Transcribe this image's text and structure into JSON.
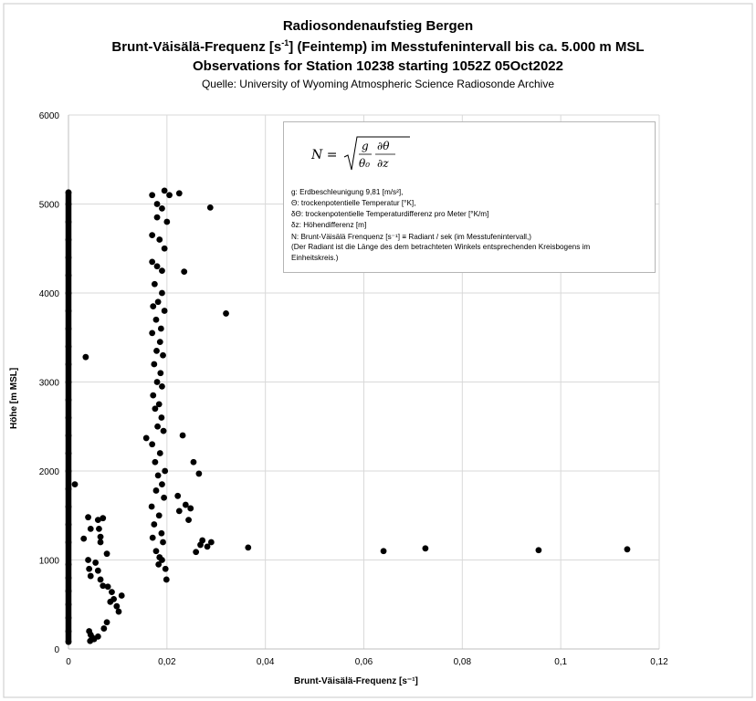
{
  "title": {
    "line1": "Radiosondenaufstieg Bergen",
    "line2": "Brunt-Väisälä-Frequenz [s",
    "line2_sup": "-1",
    "line2_rest": "] (Feintemp) im Messtufenintervall bis ca. 5.000 m MSL",
    "line3": "Observations for Station 10238 starting 1052Z 05Oct2022",
    "source": "Quelle: University of Wyoming Atmospheric Science Radiosonde Archive"
  },
  "formula_box": {
    "formula_lhs": "N =",
    "legend": [
      "g: Erdbeschleunigung 9,81 [m/s²],",
      "Θ: trockenpotentielle Temperatur [°K],",
      "δΘ: trockenpotentielle Temperaturdifferenz pro Meter [°K/m]",
      "δz: Höhendifferenz [m]",
      "N: Brunt-Väisälä Frenquenz [s⁻¹] ≡ Radiant / sek (im Messtufenintervall,)",
      "(Der Radiant ist die Länge des dem betrachteten Winkels entsprechenden Kreisbogens im",
      "Einheitskreis.)"
    ]
  },
  "chart_data": {
    "type": "scatter",
    "xlabel": "Brunt-Väisälä-Frequenz [s⁻¹]",
    "ylabel": "Höhe [m MSL]",
    "xlim": [
      0,
      0.12
    ],
    "ylim": [
      0,
      6000
    ],
    "x_ticks": [
      0,
      0.02,
      0.04,
      0.06,
      0.08,
      0.1,
      0.12
    ],
    "x_tick_labels": [
      "0",
      "0,02",
      "0,04",
      "0,06",
      "0,08",
      "0,1",
      "0,12"
    ],
    "y_ticks": [
      0,
      1000,
      2000,
      3000,
      4000,
      5000,
      6000
    ],
    "y_tick_labels": [
      "0",
      "1000",
      "2000",
      "3000",
      "4000",
      "5000",
      "6000"
    ],
    "grid": true,
    "marker_color": "#000000",
    "gridline_color": "#d9d9d9",
    "series": [
      {
        "points": [
          [
            0,
            80
          ],
          [
            0,
            200
          ],
          [
            0,
            350
          ],
          [
            0,
            500
          ],
          [
            0,
            650
          ],
          [
            0,
            800
          ],
          [
            0,
            950
          ],
          [
            0,
            1200
          ],
          [
            0,
            1400
          ],
          [
            0,
            1600
          ],
          [
            0,
            1800
          ],
          [
            0,
            2000
          ],
          [
            0,
            2200
          ],
          [
            0,
            2400
          ],
          [
            0,
            2600
          ],
          [
            0,
            2800
          ],
          [
            0,
            3000
          ],
          [
            0,
            3200
          ],
          [
            0,
            3400
          ],
          [
            0,
            3600
          ],
          [
            0,
            3800
          ],
          [
            0,
            4000
          ],
          [
            0,
            4200
          ],
          [
            0,
            4400
          ],
          [
            0,
            4600
          ],
          [
            0,
            4800
          ],
          [
            0,
            5000
          ],
          [
            0,
            5130
          ],
          [
            0.0013,
            1850
          ],
          [
            0.0035,
            3280
          ],
          [
            0.0031,
            1240
          ],
          [
            0.004,
            1480
          ],
          [
            0.0045,
            1350
          ],
          [
            0.006,
            1450
          ],
          [
            0.0062,
            1350
          ],
          [
            0.0065,
            1260
          ],
          [
            0.007,
            1470
          ],
          [
            0.0065,
            1200
          ],
          [
            0.004,
            1000
          ],
          [
            0.0042,
            900
          ],
          [
            0.0045,
            820
          ],
          [
            0.0055,
            970
          ],
          [
            0.006,
            880
          ],
          [
            0.0065,
            780
          ],
          [
            0.007,
            710
          ],
          [
            0.0078,
            1070
          ],
          [
            0.008,
            700
          ],
          [
            0.0088,
            640
          ],
          [
            0.0092,
            560
          ],
          [
            0.0098,
            480
          ],
          [
            0.0102,
            420
          ],
          [
            0.0108,
            600
          ],
          [
            0.0085,
            530
          ],
          [
            0.0078,
            300
          ],
          [
            0.0072,
            230
          ],
          [
            0.0042,
            200
          ],
          [
            0.0045,
            160
          ],
          [
            0.0048,
            130
          ],
          [
            0.0052,
            110
          ],
          [
            0.0044,
            90
          ],
          [
            0.006,
            140
          ],
          [
            0.017,
            5100
          ],
          [
            0.018,
            5000
          ],
          [
            0.019,
            4950
          ],
          [
            0.0195,
            5150
          ],
          [
            0.0205,
            5100
          ],
          [
            0.0225,
            5120
          ],
          [
            0.018,
            4850
          ],
          [
            0.02,
            4800
          ],
          [
            0.017,
            4650
          ],
          [
            0.0185,
            4600
          ],
          [
            0.0195,
            4500
          ],
          [
            0.017,
            4350
          ],
          [
            0.018,
            4300
          ],
          [
            0.019,
            4250
          ],
          [
            0.0235,
            4240
          ],
          [
            0.0175,
            4100
          ],
          [
            0.019,
            4000
          ],
          [
            0.0182,
            3900
          ],
          [
            0.0172,
            3850
          ],
          [
            0.0195,
            3800
          ],
          [
            0.0178,
            3700
          ],
          [
            0.0188,
            3600
          ],
          [
            0.017,
            3550
          ],
          [
            0.0186,
            3450
          ],
          [
            0.0179,
            3350
          ],
          [
            0.0192,
            3300
          ],
          [
            0.0174,
            3200
          ],
          [
            0.0187,
            3100
          ],
          [
            0.018,
            3000
          ],
          [
            0.019,
            2950
          ],
          [
            0.0172,
            2850
          ],
          [
            0.0184,
            2750
          ],
          [
            0.0176,
            2700
          ],
          [
            0.0189,
            2600
          ],
          [
            0.0181,
            2500
          ],
          [
            0.0193,
            2450
          ],
          [
            0.0158,
            2370
          ],
          [
            0.017,
            2300
          ],
          [
            0.0186,
            2200
          ],
          [
            0.0176,
            2100
          ],
          [
            0.0196,
            2000
          ],
          [
            0.0182,
            1950
          ],
          [
            0.019,
            1850
          ],
          [
            0.0178,
            1780
          ],
          [
            0.0194,
            1700
          ],
          [
            0.0169,
            1600
          ],
          [
            0.0184,
            1500
          ],
          [
            0.0174,
            1400
          ],
          [
            0.0189,
            1300
          ],
          [
            0.0171,
            1250
          ],
          [
            0.0192,
            1200
          ],
          [
            0.0178,
            1100
          ],
          [
            0.019,
            1000
          ],
          [
            0.0183,
            950
          ],
          [
            0.0197,
            900
          ],
          [
            0.0199,
            780
          ],
          [
            0.0185,
            1030
          ],
          [
            0.0222,
            1720
          ],
          [
            0.0238,
            1620
          ],
          [
            0.0248,
            1580
          ],
          [
            0.0244,
            1450
          ],
          [
            0.0225,
            1550
          ],
          [
            0.0232,
            2400
          ],
          [
            0.0254,
            2100
          ],
          [
            0.0265,
            1970
          ],
          [
            0.0259,
            1090
          ],
          [
            0.0268,
            1170
          ],
          [
            0.0272,
            1220
          ],
          [
            0.029,
            1200
          ],
          [
            0.0282,
            1150
          ],
          [
            0.0288,
            4960
          ],
          [
            0.032,
            3770
          ],
          [
            0.0365,
            1140
          ],
          [
            0.064,
            1100
          ],
          [
            0.0725,
            1130
          ],
          [
            0.0955,
            1110
          ],
          [
            0.1135,
            1120
          ]
        ]
      }
    ]
  }
}
